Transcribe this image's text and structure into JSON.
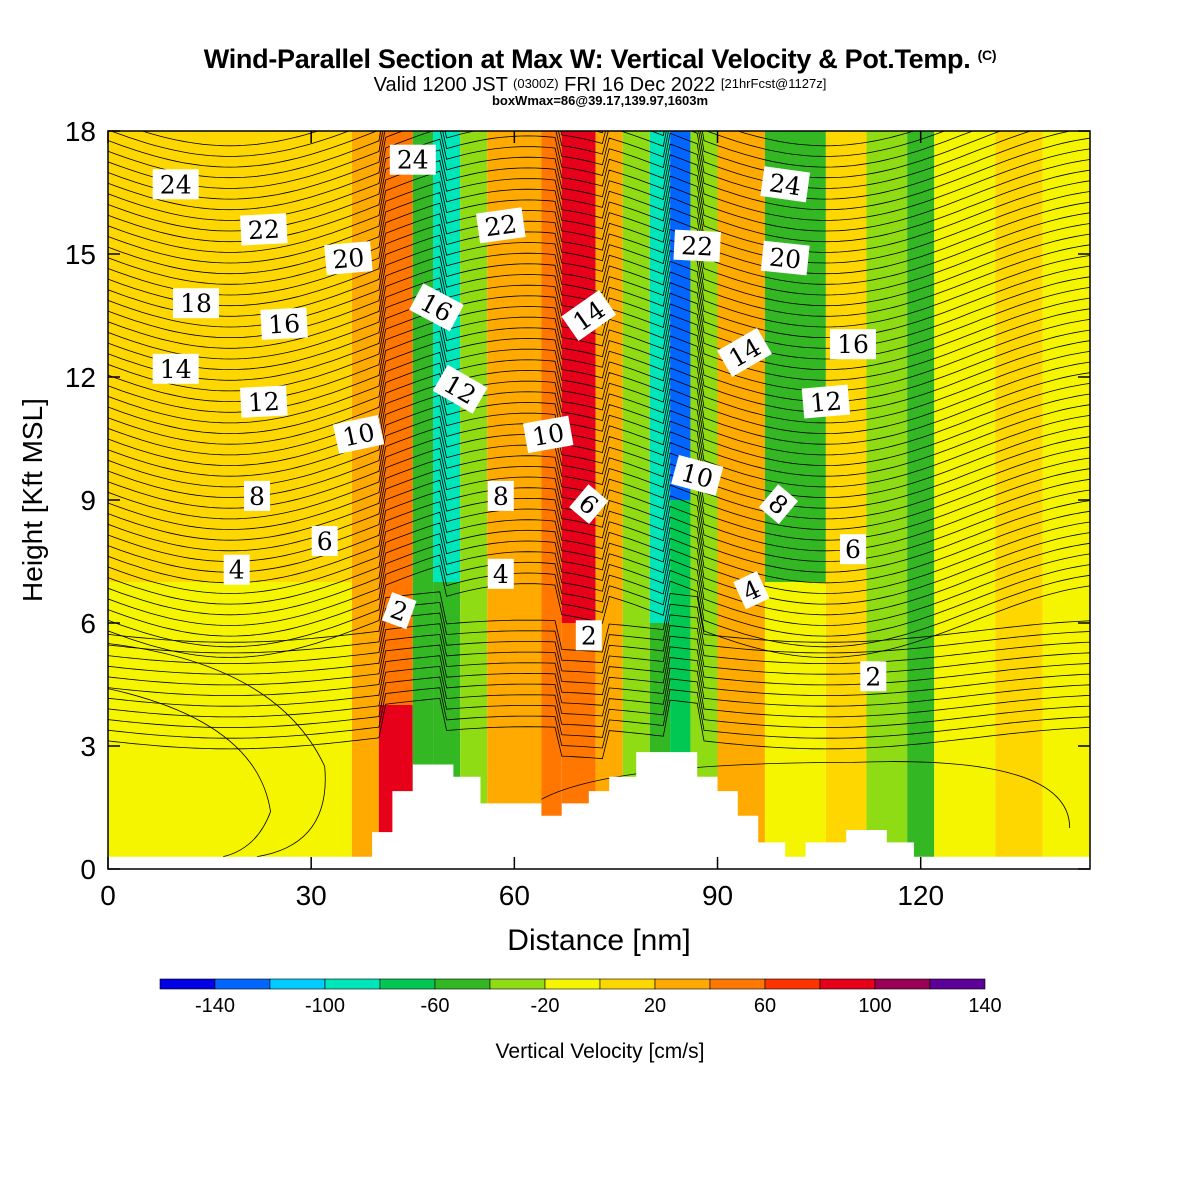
{
  "title": {
    "main": "Wind-Parallel Section at Max W: Vertical Velocity & Pot.Temp.",
    "copyright": "(C)",
    "valid_prefix": "Valid 1200 JST",
    "utc": "(0300Z)",
    "valid_date": "FRI 16 Dec 2022",
    "forecast": "[21hrFcst@1127z]",
    "box": "boxWmax=86@39.17,139.97,1603m"
  },
  "chart_data": {
    "type": "heatmap",
    "xlabel": "Distance [nm]",
    "ylabel": "Height [Kft MSL]",
    "xlim": [
      0,
      145
    ],
    "ylim": [
      0,
      18
    ],
    "xticks": [
      0,
      30,
      60,
      90,
      120
    ],
    "yticks": [
      0,
      3,
      6,
      9,
      12,
      15,
      18
    ],
    "colorbar": {
      "label": "Vertical Velocity [cm/s]",
      "levels": [
        -160,
        -140,
        -120,
        -100,
        -80,
        -60,
        -40,
        -20,
        0,
        20,
        40,
        60,
        80,
        100,
        120,
        140,
        160
      ],
      "tick_values": [
        -140,
        -100,
        -60,
        -20,
        20,
        60,
        100,
        140
      ],
      "tick_labels": [
        "-140",
        "-100",
        "-60",
        "-20",
        "20",
        "60",
        "100",
        "140"
      ],
      "colors": [
        "#0000e6",
        "#0066ff",
        "#00ccff",
        "#00e6bb",
        "#00c853",
        "#33b824",
        "#8fdb14",
        "#f5f500",
        "#ffd700",
        "#ffaa00",
        "#ff7700",
        "#ff3300",
        "#e6001a",
        "#990055",
        "#5c0099"
      ]
    },
    "velocity_bands": [
      {
        "x0": 0,
        "x1": 36,
        "y0": 0,
        "y1": 7,
        "value": -10
      },
      {
        "x0": 0,
        "x1": 36,
        "y0": 7,
        "y1": 18,
        "value": 10
      },
      {
        "x0": 36,
        "x1": 40,
        "y0": 0,
        "y1": 18,
        "value": 30
      },
      {
        "x0": 40,
        "x1": 45,
        "y0": 0,
        "y1": 4,
        "value": 90
      },
      {
        "x0": 40,
        "x1": 45,
        "y0": 4,
        "y1": 18,
        "value": 50
      },
      {
        "x0": 45,
        "x1": 48,
        "y0": 0,
        "y1": 18,
        "value": -50
      },
      {
        "x0": 48,
        "x1": 52,
        "y0": 0,
        "y1": 7,
        "value": -50
      },
      {
        "x0": 48,
        "x1": 52,
        "y0": 7,
        "y1": 18,
        "value": -90
      },
      {
        "x0": 52,
        "x1": 56,
        "y0": 0,
        "y1": 18,
        "value": -30
      },
      {
        "x0": 56,
        "x1": 64,
        "y0": 0,
        "y1": 18,
        "value": 30
      },
      {
        "x0": 64,
        "x1": 67,
        "y0": 0,
        "y1": 18,
        "value": 50
      },
      {
        "x0": 67,
        "x1": 72,
        "y0": 0,
        "y1": 6,
        "value": 50
      },
      {
        "x0": 67,
        "x1": 72,
        "y0": 6,
        "y1": 18,
        "value": 90
      },
      {
        "x0": 72,
        "x1": 76,
        "y0": 0,
        "y1": 18,
        "value": 30
      },
      {
        "x0": 76,
        "x1": 80,
        "y0": 0,
        "y1": 18,
        "value": -30
      },
      {
        "x0": 80,
        "x1": 83,
        "y0": 0,
        "y1": 6,
        "value": -50
      },
      {
        "x0": 80,
        "x1": 83,
        "y0": 6,
        "y1": 18,
        "value": -90
      },
      {
        "x0": 83,
        "x1": 86,
        "y0": 0,
        "y1": 9,
        "value": -70
      },
      {
        "x0": 83,
        "x1": 86,
        "y0": 9,
        "y1": 18,
        "value": -130
      },
      {
        "x0": 86,
        "x1": 90,
        "y0": 0,
        "y1": 18,
        "value": -30
      },
      {
        "x0": 90,
        "x1": 97,
        "y0": 0,
        "y1": 18,
        "value": 30
      },
      {
        "x0": 97,
        "x1": 106,
        "y0": 0,
        "y1": 7,
        "value": -10
      },
      {
        "x0": 97,
        "x1": 106,
        "y0": 7,
        "y1": 18,
        "value": -50
      },
      {
        "x0": 106,
        "x1": 112,
        "y0": 0,
        "y1": 18,
        "value": 10
      },
      {
        "x0": 112,
        "x1": 118,
        "y0": 0,
        "y1": 18,
        "value": -30
      },
      {
        "x0": 118,
        "x1": 122,
        "y0": 0,
        "y1": 18,
        "value": -50
      },
      {
        "x0": 122,
        "x1": 131,
        "y0": 0,
        "y1": 18,
        "value": -10
      },
      {
        "x0": 131,
        "x1": 138,
        "y0": 0,
        "y1": 18,
        "value": 10
      },
      {
        "x0": 138,
        "x1": 145,
        "y0": 0,
        "y1": 18,
        "value": -10
      }
    ],
    "terrain_kft": [
      [
        0,
        0.3
      ],
      [
        39,
        0.3
      ],
      [
        39,
        0.9
      ],
      [
        42,
        0.9
      ],
      [
        42,
        1.9
      ],
      [
        45,
        1.9
      ],
      [
        45,
        2.55
      ],
      [
        51,
        2.55
      ],
      [
        51,
        2.25
      ],
      [
        55,
        2.25
      ],
      [
        55,
        1.6
      ],
      [
        64,
        1.6
      ],
      [
        64,
        1.3
      ],
      [
        67,
        1.3
      ],
      [
        67,
        1.6
      ],
      [
        71,
        1.6
      ],
      [
        71,
        1.9
      ],
      [
        74,
        1.9
      ],
      [
        74,
        2.25
      ],
      [
        78,
        2.25
      ],
      [
        78,
        2.85
      ],
      [
        87,
        2.85
      ],
      [
        87,
        2.25
      ],
      [
        90,
        2.25
      ],
      [
        90,
        1.9
      ],
      [
        93,
        1.9
      ],
      [
        93,
        1.3
      ],
      [
        96,
        1.3
      ],
      [
        96,
        0.65
      ],
      [
        100,
        0.65
      ],
      [
        100,
        0.3
      ],
      [
        103,
        0.3
      ],
      [
        103,
        0.65
      ],
      [
        109,
        0.65
      ],
      [
        109,
        0.95
      ],
      [
        115,
        0.95
      ],
      [
        115,
        0.65
      ],
      [
        119,
        0.65
      ],
      [
        119,
        0.3
      ],
      [
        145,
        0.3
      ]
    ],
    "theta_labels": [
      {
        "x": 10,
        "y": 16.7,
        "text": "24",
        "rot": 0
      },
      {
        "x": 23,
        "y": 15.6,
        "text": "22",
        "rot": -3
      },
      {
        "x": 35.5,
        "y": 14.9,
        "text": "20",
        "rot": -5
      },
      {
        "x": 13,
        "y": 13.8,
        "text": "18",
        "rot": 0
      },
      {
        "x": 26,
        "y": 13.3,
        "text": "16",
        "rot": -3
      },
      {
        "x": 10,
        "y": 12.2,
        "text": "14",
        "rot": 0
      },
      {
        "x": 23,
        "y": 11.4,
        "text": "12",
        "rot": -3
      },
      {
        "x": 37,
        "y": 10.6,
        "text": "10",
        "rot": -12
      },
      {
        "x": 22,
        "y": 9.1,
        "text": "8",
        "rot": 0
      },
      {
        "x": 32,
        "y": 8.0,
        "text": "6",
        "rot": 0
      },
      {
        "x": 19,
        "y": 7.3,
        "text": "4",
        "rot": 0
      },
      {
        "x": 43,
        "y": 6.3,
        "text": "2",
        "rot": 20
      },
      {
        "x": 45,
        "y": 17.3,
        "text": "24",
        "rot": 0
      },
      {
        "x": 48.5,
        "y": 13.7,
        "text": "16",
        "rot": 28
      },
      {
        "x": 52,
        "y": 11.7,
        "text": "12",
        "rot": 30
      },
      {
        "x": 58,
        "y": 15.7,
        "text": "22",
        "rot": -8
      },
      {
        "x": 65,
        "y": 10.6,
        "text": "10",
        "rot": -10
      },
      {
        "x": 58,
        "y": 9.1,
        "text": "8",
        "rot": 0
      },
      {
        "x": 58,
        "y": 7.2,
        "text": "4",
        "rot": 0
      },
      {
        "x": 71,
        "y": 8.9,
        "text": "6",
        "rot": 40
      },
      {
        "x": 71,
        "y": 13.5,
        "text": "14",
        "rot": -35
      },
      {
        "x": 71,
        "y": 5.7,
        "text": "2",
        "rot": 0
      },
      {
        "x": 87,
        "y": 15.2,
        "text": "22",
        "rot": 3
      },
      {
        "x": 87,
        "y": 9.6,
        "text": "10",
        "rot": 15
      },
      {
        "x": 100,
        "y": 16.7,
        "text": "24",
        "rot": 8
      },
      {
        "x": 100,
        "y": 14.9,
        "text": "20",
        "rot": 6
      },
      {
        "x": 94,
        "y": 12.6,
        "text": "14",
        "rot": -30
      },
      {
        "x": 99,
        "y": 8.9,
        "text": "8",
        "rot": 40
      },
      {
        "x": 95,
        "y": 6.8,
        "text": "4",
        "rot": -25
      },
      {
        "x": 110,
        "y": 12.8,
        "text": "16",
        "rot": 0
      },
      {
        "x": 106,
        "y": 11.4,
        "text": "12",
        "rot": -5
      },
      {
        "x": 110,
        "y": 7.8,
        "text": "6",
        "rot": 0
      },
      {
        "x": 113,
        "y": 4.7,
        "text": "2",
        "rot": 0
      }
    ]
  }
}
